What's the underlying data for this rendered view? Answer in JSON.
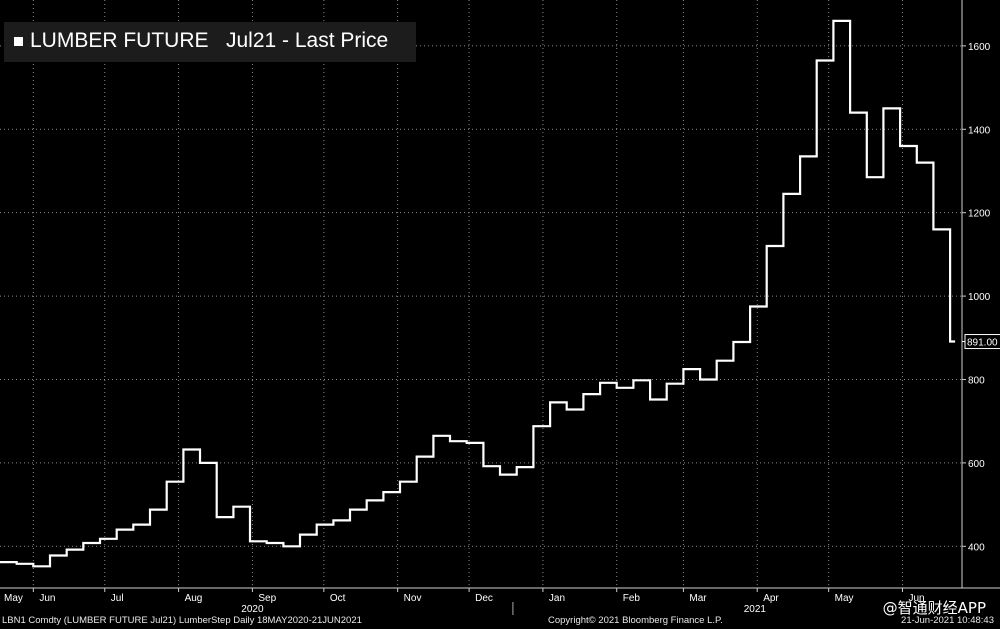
{
  "legend": {
    "series_name": "LUMBER FUTURE",
    "series_desc": "Jul21 - Last Price"
  },
  "footer": {
    "ticker": "LBN1 Comdty (LUMBER FUTURE    Jul21) LumberStep  Daily 18MAY2020-21JUN2021",
    "copyright": "Copyright© 2021 Bloomberg Finance L.P.",
    "timestamp": "21-Jun-2021 10:48:43"
  },
  "watermark": "@智通财经APP",
  "colors": {
    "background": "#000000",
    "line": "#ffffff",
    "grid": "#8a8a8a",
    "label_bg": "#1c1c1c"
  },
  "chart_data": {
    "type": "line",
    "series": [
      {
        "name": "LUMBER FUTURE Jul21 - Last Price",
        "x": [
          "2020-05-18",
          "2020-05-25",
          "2020-06-01",
          "2020-06-08",
          "2020-06-15",
          "2020-06-22",
          "2020-06-29",
          "2020-07-06",
          "2020-07-13",
          "2020-07-20",
          "2020-07-27",
          "2020-08-03",
          "2020-08-10",
          "2020-08-17",
          "2020-08-24",
          "2020-08-31",
          "2020-09-07",
          "2020-09-14",
          "2020-09-21",
          "2020-09-28",
          "2020-10-05",
          "2020-10-12",
          "2020-10-19",
          "2020-10-26",
          "2020-11-02",
          "2020-11-09",
          "2020-11-16",
          "2020-11-23",
          "2020-11-30",
          "2020-12-07",
          "2020-12-14",
          "2020-12-21",
          "2020-12-28",
          "2021-01-04",
          "2021-01-11",
          "2021-01-18",
          "2021-01-25",
          "2021-02-01",
          "2021-02-08",
          "2021-02-15",
          "2021-02-22",
          "2021-03-01",
          "2021-03-08",
          "2021-03-15",
          "2021-03-22",
          "2021-03-29",
          "2021-04-05",
          "2021-04-12",
          "2021-04-19",
          "2021-04-26",
          "2021-05-03",
          "2021-05-10",
          "2021-05-17",
          "2021-05-24",
          "2021-05-31",
          "2021-06-07",
          "2021-06-14",
          "2021-06-21"
        ],
        "values": [
          362,
          358,
          352,
          378,
          392,
          408,
          418,
          440,
          452,
          488,
          555,
          632,
          600,
          470,
          495,
          412,
          408,
          400,
          428,
          452,
          462,
          488,
          510,
          530,
          555,
          615,
          665,
          652,
          648,
          592,
          572,
          590,
          688,
          745,
          728,
          765,
          792,
          780,
          798,
          752,
          790,
          825,
          800,
          845,
          890,
          975,
          1120,
          1245,
          1335,
          1565,
          1660,
          1440,
          1285,
          1450,
          1360,
          1320,
          1160,
          891
        ]
      }
    ],
    "last_value_label": "891.00",
    "y_ticks": [
      400,
      600,
      800,
      1000,
      1200,
      1400,
      1600
    ],
    "ylim": [
      300,
      1710
    ],
    "x_tick_labels": [
      "May",
      "Jun",
      "Jul",
      "Aug",
      "Sep",
      "Oct",
      "Nov",
      "Dec",
      "Jan",
      "Feb",
      "Mar",
      "Apr",
      "May",
      "Jun"
    ],
    "x_tick_dates": [
      "2020-05-01",
      "2020-06-01",
      "2020-07-01",
      "2020-08-01",
      "2020-09-01",
      "2020-10-01",
      "2020-11-01",
      "2020-12-01",
      "2021-01-01",
      "2021-02-01",
      "2021-03-01",
      "2021-04-01",
      "2021-05-01",
      "2021-06-01"
    ],
    "year_labels": [
      {
        "label": "2020",
        "date": "2020-09-01"
      },
      {
        "label": "2021",
        "date": "2021-03-31"
      }
    ],
    "year_divider_date": "2021-01-01",
    "xlim": [
      "2020-05-18",
      "2021-06-26"
    ],
    "grid": true,
    "legend_position": "top-left",
    "y_axis_side": "right",
    "style": "step"
  }
}
